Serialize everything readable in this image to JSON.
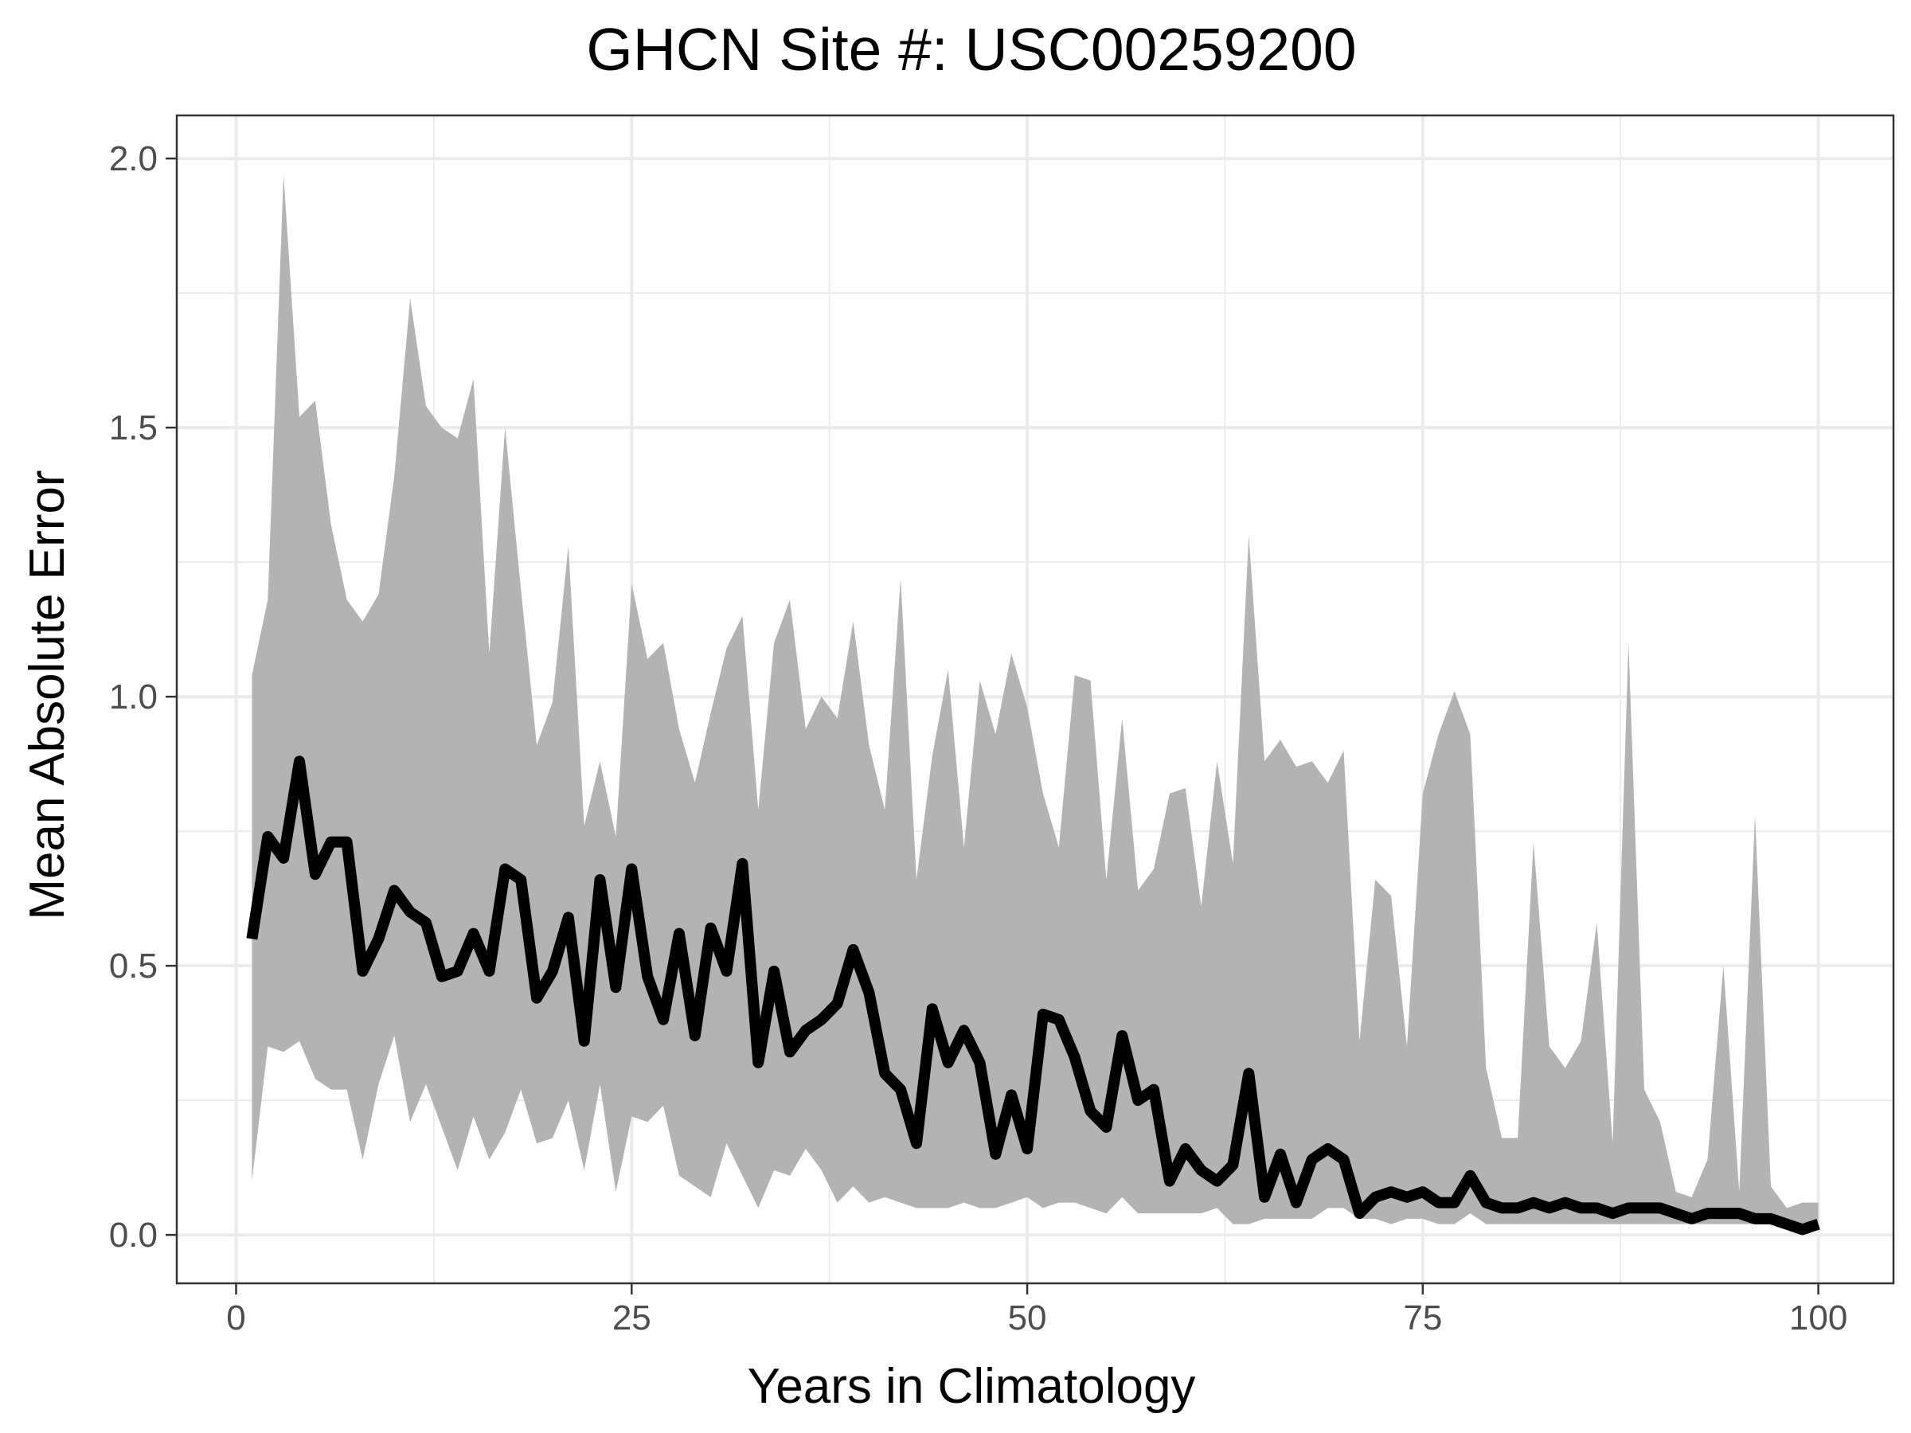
{
  "chart_data": {
    "type": "area",
    "title": "GHCN Site #: USC00259200",
    "xlabel": "Years in Climatology",
    "ylabel": "Mean Absolute Error",
    "xlim": [
      -3.75,
      104.75
    ],
    "ylim": [
      -0.09,
      2.08
    ],
    "x_ticks": [
      0,
      25,
      50,
      75,
      100
    ],
    "y_ticks": [
      0.0,
      0.5,
      1.0,
      1.5,
      2.0
    ],
    "x_tick_labels": [
      "0",
      "25",
      "50",
      "75",
      "100"
    ],
    "y_tick_labels": [
      "0.0",
      "0.5",
      "1.0",
      "1.5",
      "2.0"
    ],
    "grid": true,
    "colors": {
      "ribbon": "#b3b3b3",
      "line": "#000000",
      "grid": "#ebebeb",
      "panel_border": "#333333"
    },
    "x": [
      1,
      2,
      3,
      4,
      5,
      6,
      7,
      8,
      9,
      10,
      11,
      12,
      13,
      14,
      15,
      16,
      17,
      18,
      19,
      20,
      21,
      22,
      23,
      24,
      25,
      26,
      27,
      28,
      29,
      30,
      31,
      32,
      33,
      34,
      35,
      36,
      37,
      38,
      39,
      40,
      41,
      42,
      43,
      44,
      45,
      46,
      47,
      48,
      49,
      50,
      51,
      52,
      53,
      54,
      55,
      56,
      57,
      58,
      59,
      60,
      61,
      62,
      63,
      64,
      65,
      66,
      67,
      68,
      69,
      70,
      71,
      72,
      73,
      74,
      75,
      76,
      77,
      78,
      79,
      80,
      81,
      82,
      83,
      84,
      85,
      86,
      87,
      88,
      89,
      90,
      91,
      92,
      93,
      94,
      95,
      96,
      97,
      98,
      99,
      100
    ],
    "series": [
      {
        "type": "ribbon",
        "upper": [
          1.04,
          1.18,
          1.97,
          1.52,
          1.55,
          1.32,
          1.18,
          1.14,
          1.19,
          1.41,
          1.74,
          1.54,
          1.5,
          1.48,
          1.59,
          1.08,
          1.5,
          1.2,
          0.91,
          0.99,
          1.28,
          0.76,
          0.88,
          0.74,
          1.21,
          1.07,
          1.1,
          0.94,
          0.84,
          0.97,
          1.09,
          1.15,
          0.79,
          1.1,
          1.18,
          0.94,
          1.0,
          0.96,
          1.14,
          0.91,
          0.79,
          1.22,
          0.66,
          0.89,
          1.05,
          0.72,
          1.03,
          0.93,
          1.08,
          0.98,
          0.82,
          0.72,
          1.04,
          1.03,
          0.66,
          0.96,
          0.64,
          0.68,
          0.82,
          0.83,
          0.61,
          0.88,
          0.69,
          1.3,
          0.88,
          0.92,
          0.87,
          0.88,
          0.84,
          0.9,
          0.36,
          0.66,
          0.63,
          0.35,
          0.82,
          0.93,
          1.01,
          0.93,
          0.31,
          0.18,
          0.18,
          0.73,
          0.35,
          0.31,
          0.36,
          0.58,
          0.17,
          1.1,
          0.27,
          0.21,
          0.08,
          0.07,
          0.14,
          0.5,
          0.08,
          0.78,
          0.09,
          0.05,
          0.06,
          0.06
        ],
        "lower": [
          0.1,
          0.35,
          0.34,
          0.36,
          0.29,
          0.27,
          0.27,
          0.14,
          0.28,
          0.37,
          0.21,
          0.28,
          0.2,
          0.12,
          0.22,
          0.14,
          0.19,
          0.27,
          0.17,
          0.18,
          0.25,
          0.12,
          0.28,
          0.08,
          0.22,
          0.21,
          0.24,
          0.11,
          0.09,
          0.07,
          0.17,
          0.11,
          0.05,
          0.12,
          0.11,
          0.16,
          0.12,
          0.06,
          0.09,
          0.06,
          0.07,
          0.06,
          0.05,
          0.05,
          0.05,
          0.06,
          0.05,
          0.05,
          0.06,
          0.07,
          0.05,
          0.06,
          0.06,
          0.05,
          0.04,
          0.07,
          0.04,
          0.04,
          0.04,
          0.04,
          0.04,
          0.05,
          0.02,
          0.02,
          0.03,
          0.03,
          0.03,
          0.03,
          0.05,
          0.05,
          0.03,
          0.03,
          0.02,
          0.03,
          0.03,
          0.02,
          0.02,
          0.04,
          0.02,
          0.02,
          0.02,
          0.02,
          0.02,
          0.02,
          0.02,
          0.02,
          0.02,
          0.02,
          0.02,
          0.02,
          0.02,
          0.02,
          0.02,
          0.02,
          0.02,
          0.02,
          0.02,
          0.01,
          0.01,
          0.02
        ]
      },
      {
        "type": "line",
        "values": [
          0.55,
          0.74,
          0.7,
          0.88,
          0.67,
          0.73,
          0.73,
          0.49,
          0.55,
          0.64,
          0.6,
          0.58,
          0.48,
          0.49,
          0.56,
          0.49,
          0.68,
          0.66,
          0.44,
          0.49,
          0.59,
          0.36,
          0.66,
          0.46,
          0.68,
          0.48,
          0.4,
          0.56,
          0.37,
          0.57,
          0.49,
          0.69,
          0.32,
          0.49,
          0.34,
          0.38,
          0.4,
          0.43,
          0.53,
          0.45,
          0.3,
          0.27,
          0.17,
          0.42,
          0.32,
          0.38,
          0.32,
          0.15,
          0.26,
          0.16,
          0.41,
          0.4,
          0.33,
          0.23,
          0.2,
          0.37,
          0.25,
          0.27,
          0.1,
          0.16,
          0.12,
          0.1,
          0.13,
          0.3,
          0.07,
          0.15,
          0.06,
          0.14,
          0.16,
          0.14,
          0.04,
          0.07,
          0.08,
          0.07,
          0.08,
          0.06,
          0.06,
          0.11,
          0.06,
          0.05,
          0.05,
          0.06,
          0.05,
          0.06,
          0.05,
          0.05,
          0.04,
          0.05,
          0.05,
          0.05,
          0.04,
          0.03,
          0.04,
          0.04,
          0.04,
          0.03,
          0.03,
          0.02,
          0.01,
          0.02
        ]
      }
    ]
  }
}
